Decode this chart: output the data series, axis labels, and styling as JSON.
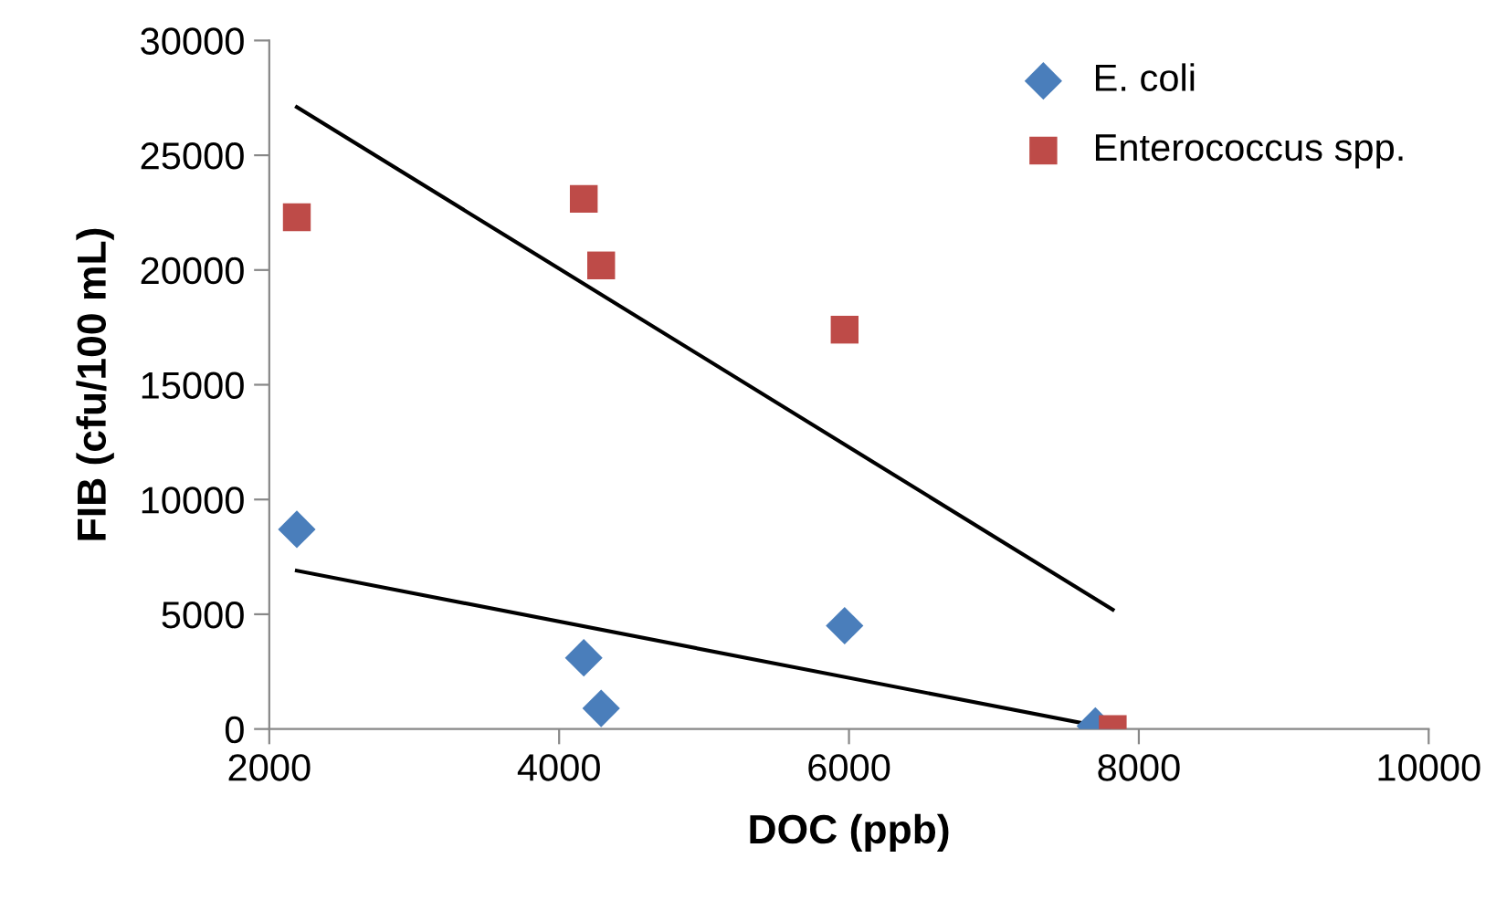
{
  "chart_data": {
    "type": "scatter",
    "xlabel": "DOC (ppb)",
    "ylabel": "FIB (cfu/100 mL)",
    "xlim": [
      2000,
      10000
    ],
    "xticks": [
      2000,
      4000,
      6000,
      8000,
      10000
    ],
    "ylim": [
      0,
      30000
    ],
    "yticks": [
      0,
      5000,
      10000,
      15000,
      20000,
      25000,
      30000
    ],
    "grid": false,
    "legend": "top right",
    "series": [
      {
        "name": "E. coli",
        "marker": "diamond",
        "color": "#4a7ebb",
        "x": [
          2190,
          4170,
          4290,
          5970,
          7700
        ],
        "values": [
          8700,
          3100,
          900,
          4500,
          130
        ]
      },
      {
        "name": "Enterococcus spp.",
        "marker": "square",
        "color": "#be4b48",
        "x": [
          2190,
          4170,
          4290,
          5970,
          7820
        ],
        "values": [
          22300,
          23100,
          20200,
          17400,
          0
        ]
      },
      {
        "type": "line",
        "color": "#000000",
        "line_style": "solid",
        "x": [
          2190,
          7820
        ],
        "values": [
          6900,
          0
        ]
      },
      {
        "type": "line",
        "color": "#000000",
        "line_style": "solid",
        "x": [
          2190,
          7820
        ],
        "values": [
          27100,
          5200
        ]
      }
    ]
  }
}
